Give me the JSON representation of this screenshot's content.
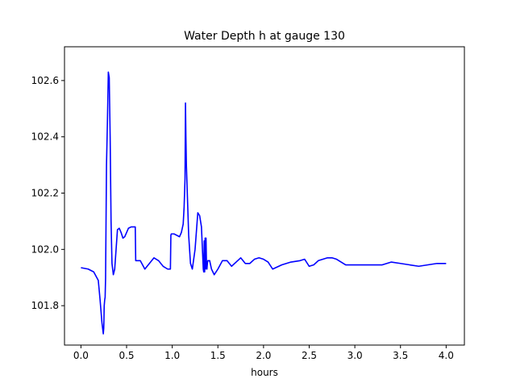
{
  "chart_data": {
    "type": "line",
    "title": "Water Depth h at gauge 130",
    "xlabel": "hours",
    "ylabel": "",
    "xlim": [
      -0.18,
      4.2
    ],
    "ylim": [
      101.66,
      102.72
    ],
    "xticks": [
      0.0,
      0.5,
      1.0,
      1.5,
      2.0,
      2.5,
      3.0,
      3.5,
      4.0
    ],
    "xtick_labels": [
      "0.0",
      "0.5",
      "1.0",
      "1.5",
      "2.0",
      "2.5",
      "3.0",
      "3.5",
      "4.0"
    ],
    "yticks": [
      101.8,
      102.0,
      102.2,
      102.4,
      102.6
    ],
    "ytick_labels": [
      "101.8",
      "102.0",
      "102.2",
      "102.4",
      "102.6"
    ],
    "grid": false,
    "legend": "none",
    "series": [
      {
        "color": "#0000ff",
        "x": [
          0.0,
          0.08,
          0.14,
          0.19,
          0.21,
          0.23,
          0.245,
          0.25,
          0.255,
          0.26,
          0.265,
          0.27,
          0.28,
          0.29,
          0.3,
          0.31,
          0.32,
          0.33,
          0.34,
          0.355,
          0.37,
          0.4,
          0.42,
          0.44,
          0.46,
          0.48,
          0.5,
          0.52,
          0.55,
          0.58,
          0.595,
          0.6,
          0.61,
          0.65,
          0.7,
          0.75,
          0.8,
          0.85,
          0.9,
          0.95,
          0.98,
          0.985,
          0.99,
          1.02,
          1.05,
          1.08,
          1.1,
          1.12,
          1.13,
          1.14,
          1.145,
          1.15,
          1.155,
          1.16,
          1.17,
          1.18,
          1.2,
          1.22,
          1.25,
          1.28,
          1.3,
          1.32,
          1.34,
          1.345,
          1.35,
          1.355,
          1.36,
          1.365,
          1.37,
          1.375,
          1.38,
          1.385,
          1.39,
          1.41,
          1.43,
          1.46,
          1.5,
          1.55,
          1.6,
          1.65,
          1.7,
          1.75,
          1.8,
          1.85,
          1.9,
          1.95,
          2.0,
          2.05,
          2.1,
          2.2,
          2.3,
          2.4,
          2.45,
          2.5,
          2.55,
          2.6,
          2.65,
          2.7,
          2.75,
          2.8,
          2.85,
          2.9,
          3.0,
          3.1,
          3.2,
          3.3,
          3.4,
          3.5,
          3.6,
          3.7,
          3.8,
          3.9,
          4.0
        ],
        "y": [
          101.935,
          101.93,
          101.92,
          101.89,
          101.82,
          101.74,
          101.7,
          101.72,
          101.8,
          101.82,
          101.83,
          101.9,
          102.3,
          102.45,
          102.63,
          102.61,
          102.4,
          102.1,
          101.95,
          101.91,
          101.93,
          102.07,
          102.075,
          102.06,
          102.04,
          102.045,
          102.06,
          102.075,
          102.08,
          102.08,
          102.08,
          101.96,
          101.96,
          101.96,
          101.93,
          101.95,
          101.97,
          101.96,
          101.94,
          101.93,
          101.93,
          102.05,
          102.055,
          102.055,
          102.05,
          102.045,
          102.06,
          102.09,
          102.15,
          102.25,
          102.52,
          102.4,
          102.3,
          102.25,
          102.15,
          102.05,
          101.95,
          101.93,
          102.0,
          102.13,
          102.12,
          102.08,
          101.93,
          101.92,
          102.03,
          101.92,
          102.04,
          101.93,
          102.04,
          101.95,
          101.93,
          101.95,
          101.96,
          101.96,
          101.93,
          101.91,
          101.93,
          101.96,
          101.96,
          101.94,
          101.955,
          101.97,
          101.95,
          101.95,
          101.965,
          101.97,
          101.965,
          101.955,
          101.93,
          101.945,
          101.955,
          101.96,
          101.965,
          101.94,
          101.945,
          101.96,
          101.965,
          101.97,
          101.97,
          101.965,
          101.955,
          101.945,
          101.945,
          101.945,
          101.945,
          101.945,
          101.955,
          101.95,
          101.945,
          101.94,
          101.945,
          101.95,
          101.95
        ]
      }
    ]
  }
}
